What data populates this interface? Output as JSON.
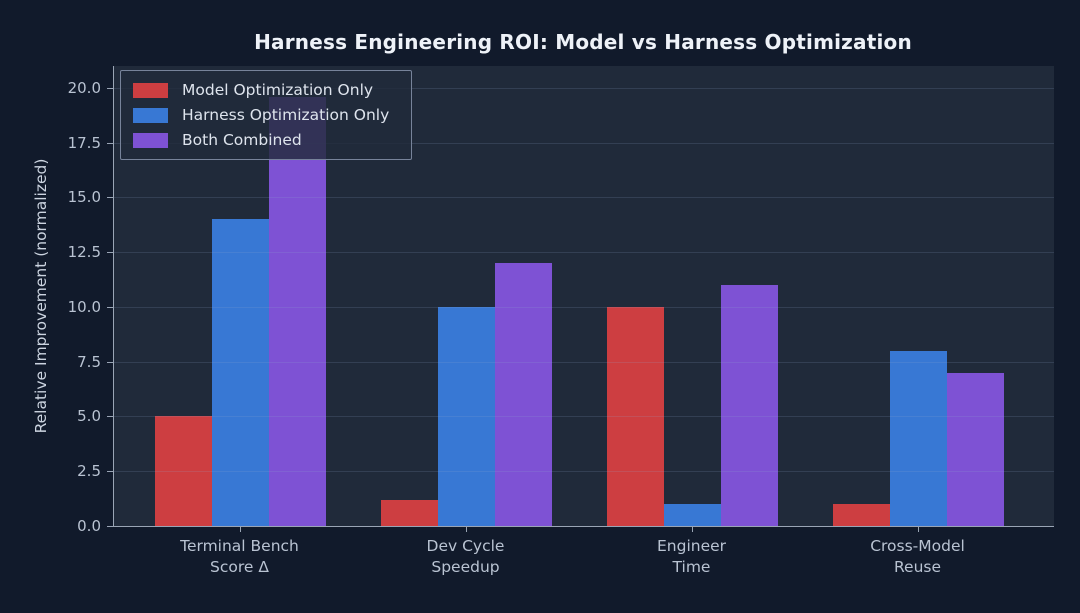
{
  "title": "Harness Engineering ROI: Model vs Harness Optimization",
  "chart_data": {
    "type": "bar",
    "categories": [
      "Terminal Bench\nScore Δ",
      "Dev Cycle\nSpeedup",
      "Engineer\nTime",
      "Cross-Model\nReuse"
    ],
    "series": [
      {
        "name": "Model Optimization Only",
        "color": "#cd3e41",
        "values": [
          5,
          1.2,
          10,
          1
        ]
      },
      {
        "name": "Harness Optimization Only",
        "color": "#3878d4",
        "values": [
          14,
          10,
          1,
          8
        ]
      },
      {
        "name": "Both Combined",
        "color": "#7e52d4",
        "values": [
          19.6,
          12,
          11,
          7
        ]
      }
    ],
    "title": "Harness Engineering ROI: Model vs Harness Optimization",
    "xlabel": "",
    "ylabel": "Relative Improvement (normalized)",
    "ylim": [
      0,
      21
    ],
    "yticks": [
      0.0,
      2.5,
      5.0,
      7.5,
      10.0,
      12.5,
      15.0,
      17.5,
      20.0
    ],
    "grid": true,
    "legend_position": "upper left"
  },
  "colors": {
    "background": "#111a2b",
    "plot_background": "#202a3a",
    "gridline": "#2b364c",
    "axis": "#9aa5b5",
    "title_text": "#eef2f8",
    "tick_text": "#b9c3d2",
    "red": "#cd3e41",
    "blue": "#3878d4",
    "purple": "#7e52d4"
  }
}
